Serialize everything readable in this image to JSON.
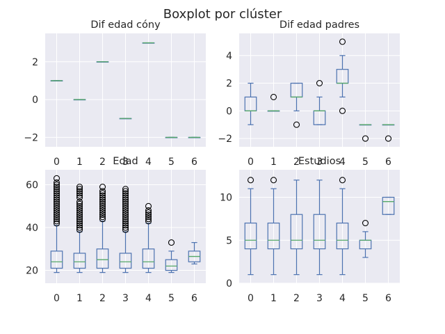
{
  "title": "Boxplot por clúster",
  "chart_data": [
    {
      "type": "box",
      "title": "Dif edad cóny",
      "categories": [
        "0",
        "1",
        "2",
        "3",
        "4",
        "5",
        "6"
      ],
      "ylim": [
        -2.5,
        3.5
      ],
      "yticks": [
        -2,
        0,
        2
      ],
      "grid": true,
      "boxes": [
        {
          "whislo": 1,
          "q1": 1,
          "median": 1,
          "q3": 1,
          "whishi": 1,
          "fliers": []
        },
        {
          "whislo": 0,
          "q1": 0,
          "median": 0,
          "q3": 0,
          "whishi": 0,
          "fliers": []
        },
        {
          "whislo": 2,
          "q1": 2,
          "median": 2,
          "q3": 2,
          "whishi": 2,
          "fliers": []
        },
        {
          "whislo": -1,
          "q1": -1,
          "median": -1,
          "q3": -1,
          "whishi": -1,
          "fliers": []
        },
        {
          "whislo": 3,
          "q1": 3,
          "median": 3,
          "q3": 3,
          "whishi": 3,
          "fliers": []
        },
        {
          "whislo": -2,
          "q1": -2,
          "median": -2,
          "q3": -2,
          "whishi": -2,
          "fliers": []
        },
        {
          "whislo": -2,
          "q1": -2,
          "median": -2,
          "q3": -2,
          "whishi": -2,
          "fliers": []
        }
      ]
    },
    {
      "type": "box",
      "title": "Dif edad padres",
      "categories": [
        "0",
        "1",
        "2",
        "3",
        "4",
        "5",
        "6"
      ],
      "ylim": [
        -2.6,
        5.6
      ],
      "yticks": [
        -2,
        0,
        2,
        4
      ],
      "grid": true,
      "boxes": [
        {
          "whislo": -1,
          "q1": 0,
          "median": 0,
          "q3": 1,
          "whishi": 2,
          "fliers": []
        },
        {
          "whislo": 0,
          "q1": 0,
          "median": 0,
          "q3": 0,
          "whishi": 0,
          "fliers": [
            1
          ]
        },
        {
          "whislo": 0,
          "q1": 1,
          "median": 1,
          "q3": 2,
          "whishi": 2,
          "fliers": [
            -1
          ]
        },
        {
          "whislo": -1,
          "q1": -1,
          "median": 0,
          "q3": 0,
          "whishi": 1,
          "fliers": [
            2
          ]
        },
        {
          "whislo": 1,
          "q1": 2,
          "median": 2,
          "q3": 3,
          "whishi": 4,
          "fliers": [
            0,
            5
          ]
        },
        {
          "whislo": -1,
          "q1": -1,
          "median": -1,
          "q3": -1,
          "whishi": -1,
          "fliers": [
            -2
          ]
        },
        {
          "whislo": -1,
          "q1": -1,
          "median": -1,
          "q3": -1,
          "whishi": -1,
          "fliers": [
            -2
          ]
        }
      ]
    },
    {
      "type": "box",
      "title": "Edad",
      "categories": [
        "0",
        "1",
        "2",
        "3",
        "4",
        "5",
        "6"
      ],
      "ylim": [
        14,
        67
      ],
      "yticks": [
        20,
        40,
        60
      ],
      "grid": true,
      "boxes": [
        {
          "whislo": 19,
          "q1": 21,
          "median": 24,
          "q3": 29,
          "whishi": 41,
          "fliers": [
            42,
            43,
            44,
            45,
            46,
            47,
            48,
            49,
            50,
            51,
            52,
            53,
            54,
            55,
            56,
            57,
            58,
            59,
            60,
            61,
            63
          ]
        },
        {
          "whislo": 19,
          "q1": 21,
          "median": 24,
          "q3": 28,
          "whishi": 38,
          "fliers": [
            39,
            40,
            41,
            42,
            43,
            44,
            45,
            46,
            47,
            48,
            49,
            50,
            51,
            52,
            54,
            55,
            56,
            57,
            58,
            59
          ]
        },
        {
          "whislo": 19,
          "q1": 21,
          "median": 25,
          "q3": 30,
          "whishi": 43,
          "fliers": [
            44,
            45,
            46,
            47,
            48,
            49,
            50,
            51,
            52,
            53,
            54,
            55,
            56,
            57,
            59
          ]
        },
        {
          "whislo": 19,
          "q1": 21,
          "median": 24,
          "q3": 28,
          "whishi": 38,
          "fliers": [
            39,
            40,
            41,
            42,
            43,
            44,
            45,
            46,
            47,
            48,
            49,
            50,
            51,
            52,
            53,
            54,
            55,
            56,
            57,
            58
          ]
        },
        {
          "whislo": 19,
          "q1": 21,
          "median": 24,
          "q3": 30,
          "whishi": 42,
          "fliers": [
            43,
            44,
            45,
            46,
            47,
            48,
            50
          ]
        },
        {
          "whislo": 19,
          "q1": 20,
          "median": 22,
          "q3": 25,
          "whishi": 29,
          "fliers": [
            33
          ]
        },
        {
          "whislo": 23,
          "q1": 24,
          "median": 26.5,
          "q3": 29,
          "whishi": 33,
          "fliers": []
        }
      ]
    },
    {
      "type": "box",
      "title": "Estudios",
      "categories": [
        "0",
        "1",
        "2",
        "3",
        "4",
        "5",
        "6"
      ],
      "ylim": [
        0,
        13.2
      ],
      "yticks": [
        0,
        5,
        10
      ],
      "grid": true,
      "boxes": [
        {
          "whislo": 1,
          "q1": 4,
          "median": 5,
          "q3": 7,
          "whishi": 11,
          "fliers": [
            12
          ]
        },
        {
          "whislo": 1,
          "q1": 4,
          "median": 5,
          "q3": 7,
          "whishi": 11,
          "fliers": [
            12
          ]
        },
        {
          "whislo": 1,
          "q1": 4,
          "median": 5,
          "q3": 8,
          "whishi": 12,
          "fliers": []
        },
        {
          "whislo": 1,
          "q1": 4,
          "median": 5,
          "q3": 8,
          "whishi": 12,
          "fliers": []
        },
        {
          "whislo": 1,
          "q1": 4,
          "median": 5,
          "q3": 7,
          "whishi": 11,
          "fliers": [
            12
          ]
        },
        {
          "whislo": 3,
          "q1": 4,
          "median": 5,
          "q3": 5,
          "whishi": 6,
          "fliers": [
            7
          ]
        },
        {
          "whislo": 8,
          "q1": 8,
          "median": 9.5,
          "q3": 10,
          "whishi": 10,
          "fliers": []
        }
      ]
    }
  ],
  "colors": {
    "background": "#eaeaf2",
    "grid": "#ffffff",
    "box": "#4c72b0",
    "median": "#55a868",
    "flier": "#000000"
  }
}
